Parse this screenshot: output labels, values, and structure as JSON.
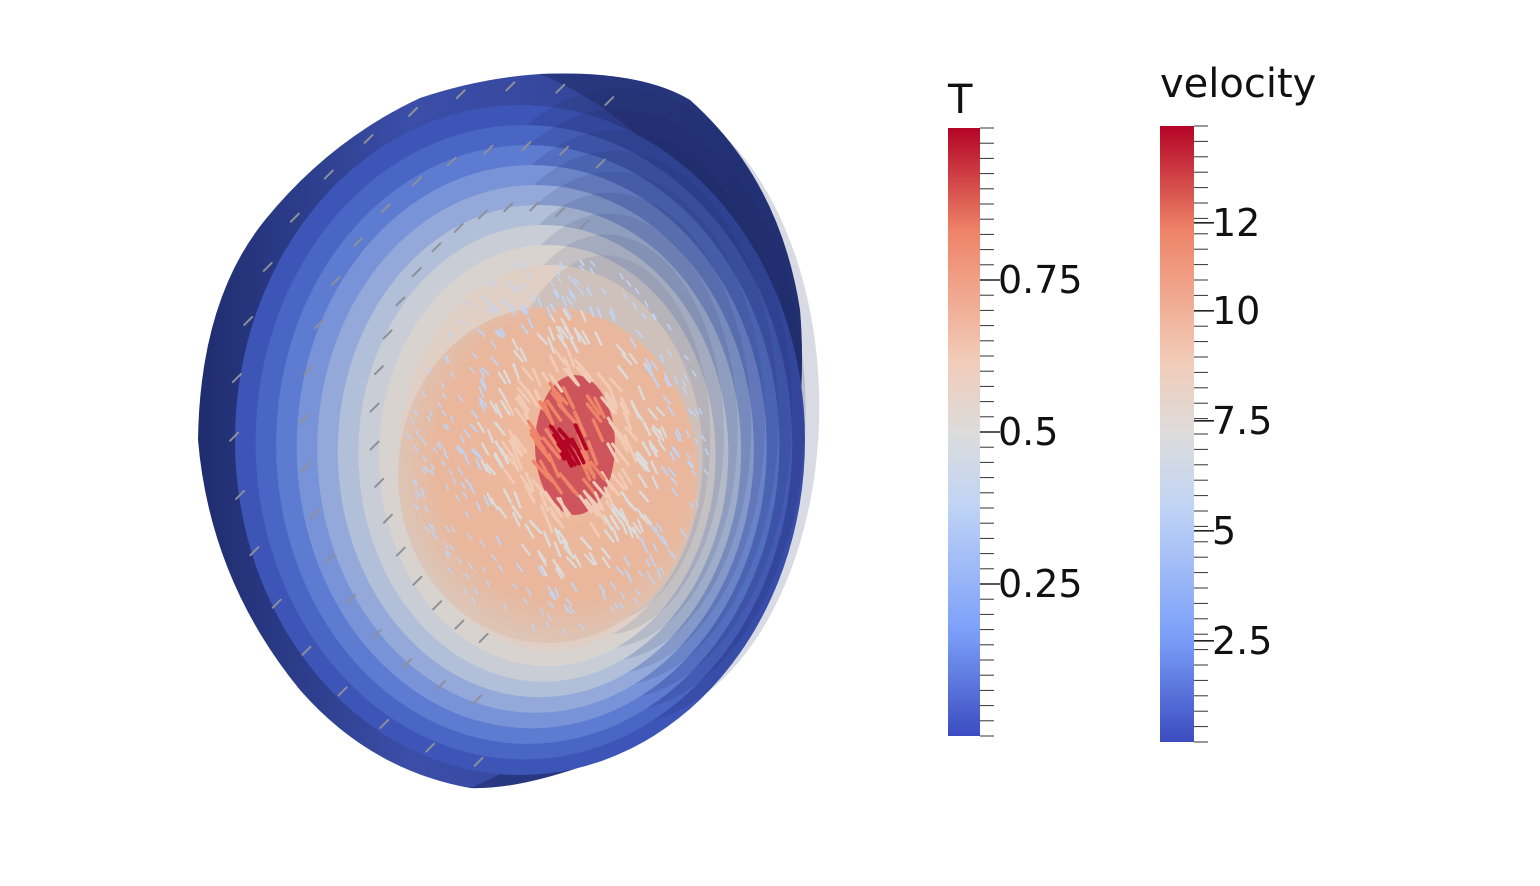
{
  "colorbars": [
    {
      "id": "temperature",
      "title": "T",
      "range": [
        0,
        1
      ],
      "ticks": [
        {
          "label": "0.25",
          "value": 0.25
        },
        {
          "label": "0.5",
          "value": 0.5
        },
        {
          "label": "0.75",
          "value": 0.75
        }
      ]
    },
    {
      "id": "velocity",
      "title": "velocity",
      "range": [
        0.2,
        14.2
      ],
      "ticks": [
        {
          "label": "2.5",
          "value": 2.5
        },
        {
          "label": "5",
          "value": 5
        },
        {
          "label": "7.5",
          "value": 7.5
        },
        {
          "label": "10",
          "value": 10
        },
        {
          "label": "12",
          "value": 12
        }
      ]
    }
  ],
  "colormap": {
    "name": "cool-to-warm",
    "stops": [
      "#3b4cc0",
      "#7b9ff9",
      "#c0d4f5",
      "#dddcdc",
      "#f2cbb7",
      "#ee8468",
      "#b40426"
    ]
  },
  "scene": {
    "description_shells": 9,
    "outer_color": "#2f3f8e",
    "core_color": "#e9b79c",
    "hot_color": "#b40426"
  }
}
